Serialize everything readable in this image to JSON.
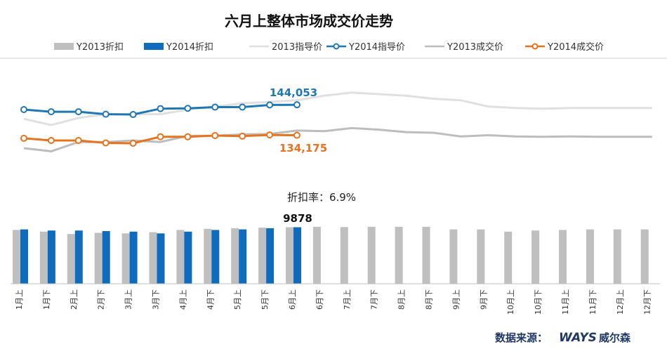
{
  "chart_data": {
    "type": "combo-bar-line",
    "title": "六月上整体市场成交价走势",
    "categories": [
      "1月上",
      "1月下",
      "2月上",
      "2月下",
      "3月上",
      "3月下",
      "4月上",
      "4月下",
      "5月上",
      "5月下",
      "6月上",
      "6月下",
      "7月上",
      "7月下",
      "8月上",
      "8月下",
      "9月上",
      "9月下",
      "10月上",
      "10月下",
      "11月上",
      "11月下",
      "12月上",
      "12月下"
    ],
    "legend": [
      "Y2013折扣",
      "Y2014折扣",
      "2013指导价",
      "Y2014指导价",
      "Y2013成交价",
      "Y2014成交价"
    ],
    "bar_series": [
      {
        "name": "Y2013折扣",
        "color": "#bfbfbf",
        "values": [
          9400,
          9100,
          8700,
          8900,
          8800,
          9000,
          9400,
          9600,
          9700,
          9800,
          9878,
          9950,
          9900,
          9950,
          9950,
          9950,
          9500,
          9500,
          9100,
          9300,
          9400,
          9500,
          9500,
          9500
        ]
      },
      {
        "name": "Y2014折扣",
        "color": "#0f6cbd",
        "values": [
          9500,
          9300,
          9300,
          9200,
          9100,
          8800,
          9100,
          9400,
          9500,
          9700,
          9878
        ]
      }
    ],
    "line_series": [
      {
        "name": "2013指导价",
        "color": "#e0e0e0",
        "marker": false,
        "values": [
          139500,
          137500,
          139800,
          141000,
          141000,
          141000,
          142500,
          143500,
          144500,
          145000,
          145500,
          147000,
          148000,
          147500,
          147000,
          146000,
          145500,
          143500,
          143000,
          142800,
          143000,
          143000,
          143000,
          143000
        ]
      },
      {
        "name": "Y2014指导价",
        "color": "#1f77b4",
        "marker": true,
        "values": [
          142500,
          141800,
          141800,
          141000,
          140900,
          142800,
          142900,
          143300,
          143300,
          144000,
          144053
        ]
      },
      {
        "name": "Y2013成交价",
        "color": "#bdbdbd",
        "marker": false,
        "values": [
          130000,
          129000,
          132000,
          132000,
          132500,
          132000,
          134000,
          134000,
          134500,
          134600,
          135700,
          135500,
          136500,
          136000,
          135200,
          135000,
          133800,
          134200,
          133800,
          133700,
          133800,
          133700,
          133700,
          133700
        ]
      },
      {
        "name": "Y2014成交价",
        "color": "#e8731e",
        "marker": true,
        "values": [
          133200,
          132500,
          132500,
          131700,
          131600,
          133700,
          133700,
          134100,
          133900,
          134300,
          134175
        ]
      }
    ],
    "labels": {
      "guide_last": "144,053",
      "deal_last": "134,175",
      "discount_rate": "折扣率：6.9%",
      "discount_last": "9878"
    },
    "source": "数据来源：",
    "brand_logo": "WAYS",
    "brand_name": "威尔森",
    "grid": false
  }
}
